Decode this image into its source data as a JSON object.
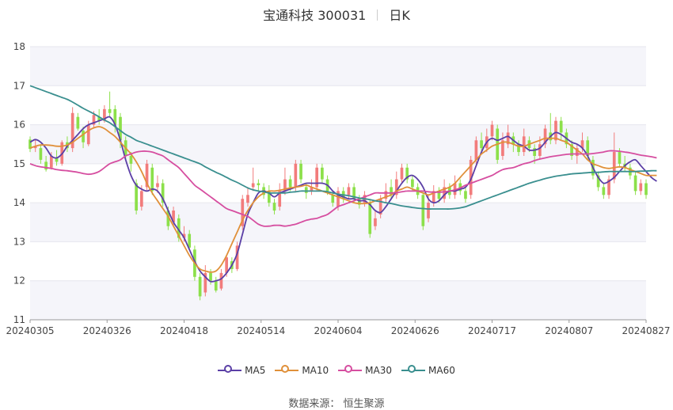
{
  "title": {
    "name": "宝通科技 300031",
    "period": "日K"
  },
  "source": "数据来源： 恒生聚源",
  "chart_data": {
    "type": "candlestick",
    "ylim": [
      11,
      18
    ],
    "yticks": [
      "11",
      "12",
      "13",
      "14",
      "15",
      "16",
      "17",
      "18"
    ],
    "xlim": [
      "20240305",
      "20240827"
    ],
    "xticks": [
      "20240305",
      "20240326",
      "20240418",
      "20240514",
      "20240604",
      "20240626",
      "20240717",
      "20240807",
      "20240827"
    ],
    "legend": [
      {
        "name": "MA5",
        "color": "#5b3fa6"
      },
      {
        "name": "MA10",
        "color": "#e0903a"
      },
      {
        "name": "MA30",
        "color": "#d64ea0"
      },
      {
        "name": "MA60",
        "color": "#3a8f8f"
      }
    ],
    "up_color": "#f27c7c",
    "down_color": "#8ce04a",
    "candles": [
      [
        15.62,
        15.38,
        15.7,
        15.3
      ],
      [
        15.4,
        15.45,
        15.62,
        15.3
      ],
      [
        15.4,
        15.1,
        15.5,
        15.0
      ],
      [
        15.05,
        14.85,
        15.2,
        14.8
      ],
      [
        14.9,
        15.2,
        15.3,
        14.85
      ],
      [
        15.15,
        15.05,
        15.35,
        14.95
      ],
      [
        15.0,
        15.55,
        15.6,
        14.95
      ],
      [
        15.55,
        15.4,
        15.7,
        15.3
      ],
      [
        15.4,
        16.3,
        16.45,
        15.3
      ],
      [
        16.2,
        15.9,
        16.3,
        15.85
      ],
      [
        15.85,
        15.55,
        15.95,
        15.4
      ],
      [
        15.5,
        16.0,
        16.1,
        15.45
      ],
      [
        16.0,
        16.25,
        16.35,
        15.9
      ],
      [
        16.2,
        16.1,
        16.4,
        16.0
      ],
      [
        16.1,
        16.4,
        16.5,
        16.05
      ],
      [
        16.4,
        16.3,
        16.85,
        16.2
      ],
      [
        16.4,
        16.0,
        16.5,
        15.8
      ],
      [
        16.2,
        15.6,
        16.3,
        15.4
      ],
      [
        15.6,
        15.2,
        15.7,
        15.1
      ],
      [
        15.2,
        15.0,
        15.3,
        14.8
      ],
      [
        14.5,
        13.8,
        14.6,
        13.7
      ],
      [
        13.9,
        14.3,
        14.45,
        13.8
      ],
      [
        14.4,
        15.0,
        15.1,
        14.3
      ],
      [
        14.9,
        14.3,
        15.0,
        14.2
      ],
      [
        14.4,
        14.5,
        14.7,
        14.25
      ],
      [
        14.5,
        14.0,
        14.6,
        13.9
      ],
      [
        13.8,
        13.4,
        13.9,
        13.3
      ],
      [
        13.5,
        13.8,
        13.9,
        13.4
      ],
      [
        13.6,
        13.1,
        13.7,
        13.0
      ],
      [
        13.1,
        13.2,
        13.4,
        13.0
      ],
      [
        13.2,
        12.85,
        13.3,
        12.8
      ],
      [
        12.8,
        12.1,
        12.9,
        12.0
      ],
      [
        12.1,
        11.6,
        12.2,
        11.5
      ],
      [
        11.7,
        12.2,
        12.4,
        11.6
      ],
      [
        12.2,
        12.0,
        12.3,
        11.9
      ],
      [
        12.0,
        11.75,
        12.1,
        11.7
      ],
      [
        11.8,
        12.2,
        12.3,
        11.75
      ],
      [
        12.2,
        12.6,
        12.65,
        12.1
      ],
      [
        12.5,
        12.3,
        12.6,
        12.2
      ],
      [
        12.3,
        12.9,
        13.0,
        12.25
      ],
      [
        13.4,
        14.1,
        14.2,
        13.3
      ],
      [
        14.0,
        14.2,
        14.4,
        13.9
      ],
      [
        14.4,
        14.5,
        14.9,
        14.3
      ],
      [
        14.5,
        14.45,
        14.6,
        14.3
      ],
      [
        14.4,
        14.2,
        14.5,
        14.1
      ],
      [
        14.3,
        14.0,
        14.45,
        13.9
      ],
      [
        14.0,
        13.8,
        14.1,
        13.7
      ],
      [
        13.9,
        14.3,
        14.5,
        13.8
      ],
      [
        14.3,
        14.6,
        14.9,
        14.2
      ],
      [
        14.6,
        14.4,
        14.7,
        14.3
      ],
      [
        14.4,
        15.0,
        15.1,
        14.3
      ],
      [
        15.0,
        14.6,
        15.1,
        14.5
      ],
      [
        14.4,
        14.25,
        14.5,
        14.1
      ],
      [
        14.3,
        14.4,
        14.6,
        14.2
      ],
      [
        14.4,
        14.9,
        15.0,
        14.3
      ],
      [
        14.9,
        14.6,
        15.0,
        14.5
      ],
      [
        14.6,
        14.3,
        14.7,
        14.2
      ],
      [
        14.2,
        14.0,
        14.3,
        13.9
      ],
      [
        13.9,
        14.3,
        14.4,
        13.8
      ],
      [
        14.3,
        14.1,
        14.4,
        14.0
      ],
      [
        14.2,
        14.4,
        14.5,
        14.1
      ],
      [
        14.4,
        14.1,
        14.5,
        14.0
      ],
      [
        14.1,
        13.95,
        14.2,
        13.85
      ],
      [
        14.0,
        14.2,
        14.3,
        13.9
      ],
      [
        14.0,
        13.2,
        14.1,
        13.1
      ],
      [
        13.4,
        13.6,
        13.8,
        13.3
      ],
      [
        13.7,
        14.1,
        14.2,
        13.6
      ],
      [
        14.1,
        14.3,
        14.5,
        14.0
      ],
      [
        14.4,
        14.2,
        14.6,
        14.1
      ],
      [
        14.2,
        14.6,
        14.8,
        14.1
      ],
      [
        14.6,
        14.9,
        15.0,
        14.5
      ],
      [
        14.9,
        14.6,
        15.0,
        14.5
      ],
      [
        14.6,
        14.4,
        14.7,
        14.3
      ],
      [
        14.4,
        14.2,
        14.5,
        14.1
      ],
      [
        14.2,
        13.4,
        14.3,
        13.3
      ],
      [
        13.6,
        14.0,
        14.2,
        13.5
      ],
      [
        14.0,
        14.3,
        14.45,
        13.9
      ],
      [
        14.3,
        14.1,
        14.4,
        14.0
      ],
      [
        14.1,
        14.4,
        14.6,
        14.0
      ],
      [
        14.4,
        14.2,
        14.5,
        14.1
      ],
      [
        14.2,
        14.5,
        14.7,
        14.1
      ],
      [
        14.5,
        14.3,
        14.6,
        14.2
      ],
      [
        14.3,
        14.1,
        14.4,
        14.0
      ],
      [
        14.2,
        15.1,
        15.2,
        14.1
      ],
      [
        15.1,
        15.6,
        15.7,
        15.0
      ],
      [
        15.6,
        15.4,
        15.8,
        15.3
      ],
      [
        15.4,
        15.7,
        15.9,
        15.3
      ],
      [
        15.7,
        16.0,
        16.1,
        15.6
      ],
      [
        15.9,
        15.1,
        16.0,
        15.0
      ],
      [
        15.2,
        15.6,
        15.8,
        15.1
      ],
      [
        15.5,
        15.8,
        16.0,
        15.4
      ],
      [
        15.7,
        15.5,
        15.8,
        15.3
      ],
      [
        15.5,
        15.3,
        15.6,
        15.2
      ],
      [
        15.3,
        15.7,
        15.9,
        15.2
      ],
      [
        15.6,
        15.4,
        15.7,
        15.3
      ],
      [
        15.4,
        15.2,
        15.5,
        15.0
      ],
      [
        15.2,
        15.5,
        15.7,
        15.1
      ],
      [
        15.5,
        15.9,
        16.0,
        15.4
      ],
      [
        15.8,
        15.6,
        16.3,
        15.5
      ],
      [
        15.6,
        16.1,
        16.2,
        15.5
      ],
      [
        16.1,
        15.8,
        16.2,
        15.6
      ],
      [
        15.8,
        15.5,
        15.9,
        15.4
      ],
      [
        15.5,
        15.2,
        15.6,
        15.1
      ],
      [
        15.2,
        15.4,
        15.5,
        15.0
      ],
      [
        15.4,
        15.6,
        15.8,
        15.3
      ],
      [
        15.6,
        15.2,
        15.7,
        15.1
      ],
      [
        15.1,
        14.7,
        15.2,
        14.6
      ],
      [
        14.7,
        14.4,
        14.8,
        14.3
      ],
      [
        14.4,
        14.2,
        14.5,
        14.1
      ],
      [
        14.2,
        14.6,
        14.7,
        14.1
      ],
      [
        14.6,
        15.3,
        15.8,
        14.5
      ],
      [
        15.3,
        15.0,
        15.4,
        14.9
      ],
      [
        15.0,
        14.9,
        15.2,
        14.8
      ],
      [
        14.9,
        14.7,
        15.0,
        14.6
      ],
      [
        14.7,
        14.3,
        14.8,
        14.2
      ],
      [
        14.3,
        14.5,
        14.6,
        14.2
      ],
      [
        14.5,
        14.2,
        14.6,
        14.1
      ]
    ],
    "series": [
      {
        "name": "MA5",
        "color": "#5b3fa6",
        "values": [
          15.55,
          15.62,
          15.55,
          15.4,
          15.2,
          15.15,
          15.25,
          15.45,
          15.6,
          15.75,
          15.9,
          16.0,
          16.05,
          16.1,
          16.15,
          16.2,
          16.0,
          15.6,
          15.1,
          14.7,
          14.45,
          14.35,
          14.3,
          14.35,
          14.3,
          14.1,
          13.8,
          13.5,
          13.3,
          13.1,
          12.8,
          12.5,
          12.25,
          12.1,
          11.98,
          12.0,
          12.05,
          12.2,
          12.4,
          12.7,
          13.2,
          13.7,
          14.0,
          14.25,
          14.3,
          14.25,
          14.15,
          14.25,
          14.3,
          14.35,
          14.4,
          14.45,
          14.5,
          14.5,
          14.5,
          14.5,
          14.45,
          14.3,
          14.2,
          14.15,
          14.1,
          14.1,
          14.05,
          14.05,
          13.95,
          13.8,
          13.75,
          13.9,
          14.1,
          14.3,
          14.5,
          14.65,
          14.7,
          14.6,
          14.4,
          14.1,
          14.0,
          14.05,
          14.2,
          14.3,
          14.3,
          14.35,
          14.4,
          14.6,
          14.95,
          15.3,
          15.55,
          15.65,
          15.6,
          15.65,
          15.7,
          15.6,
          15.5,
          15.45,
          15.35,
          15.35,
          15.4,
          15.55,
          15.7,
          15.8,
          15.75,
          15.65,
          15.55,
          15.5,
          15.4,
          15.2,
          14.9,
          14.65,
          14.5,
          14.55,
          14.65,
          14.8,
          14.95,
          15.05,
          15.1,
          14.95,
          14.8,
          14.65,
          14.55
        ]
      },
      {
        "name": "MA10",
        "color": "#e0903a",
        "values": [
          15.4,
          15.45,
          15.48,
          15.48,
          15.47,
          15.45,
          15.45,
          15.48,
          15.55,
          15.65,
          15.75,
          15.85,
          15.92,
          15.95,
          15.9,
          15.8,
          15.7,
          15.55,
          15.4,
          15.25,
          15.05,
          14.8,
          14.5,
          14.25,
          14.05,
          13.85,
          13.65,
          13.4,
          13.15,
          12.9,
          12.65,
          12.45,
          12.3,
          12.25,
          12.22,
          12.25,
          12.4,
          12.65,
          12.95,
          13.25,
          13.55,
          13.8,
          14.0,
          14.15,
          14.25,
          14.3,
          14.3,
          14.32,
          14.35,
          14.38,
          14.4,
          14.42,
          14.45,
          14.4,
          14.35,
          14.3,
          14.25,
          14.2,
          14.15,
          14.1,
          14.05,
          14.0,
          13.98,
          13.98,
          14.0,
          14.05,
          14.1,
          14.15,
          14.2,
          14.3,
          14.35,
          14.4,
          14.35,
          14.3,
          14.25,
          14.2,
          14.25,
          14.3,
          14.35,
          14.4,
          14.5,
          14.65,
          14.8,
          14.95,
          15.1,
          15.25,
          15.35,
          15.45,
          15.5,
          15.55,
          15.55,
          15.5,
          15.45,
          15.45,
          15.5,
          15.55,
          15.6,
          15.65,
          15.65,
          15.65,
          15.6,
          15.55,
          15.45,
          15.35,
          15.25,
          15.1,
          15.0,
          14.95,
          14.9,
          14.88,
          14.9,
          14.92,
          14.9,
          14.85,
          14.8,
          14.75,
          14.7,
          14.7,
          14.7
        ]
      },
      {
        "name": "MA30",
        "color": "#d64ea0",
        "values": [
          15.0,
          14.95,
          14.92,
          14.9,
          14.88,
          14.85,
          14.83,
          14.82,
          14.8,
          14.78,
          14.75,
          14.73,
          14.75,
          14.8,
          14.9,
          15.0,
          15.05,
          15.1,
          15.2,
          15.25,
          15.3,
          15.32,
          15.32,
          15.3,
          15.25,
          15.2,
          15.1,
          15.0,
          14.9,
          14.75,
          14.6,
          14.45,
          14.35,
          14.25,
          14.15,
          14.05,
          13.95,
          13.85,
          13.8,
          13.75,
          13.7,
          13.65,
          13.55,
          13.45,
          13.4,
          13.4,
          13.42,
          13.42,
          13.4,
          13.42,
          13.45,
          13.5,
          13.55,
          13.58,
          13.6,
          13.65,
          13.7,
          13.8,
          13.9,
          13.95,
          14.0,
          14.05,
          14.1,
          14.15,
          14.2,
          14.25,
          14.25,
          14.25,
          14.25,
          14.26,
          14.28,
          14.3,
          14.3,
          14.3,
          14.3,
          14.28,
          14.27,
          14.27,
          14.28,
          14.3,
          14.33,
          14.38,
          14.45,
          14.5,
          14.55,
          14.6,
          14.65,
          14.7,
          14.78,
          14.85,
          14.88,
          14.9,
          14.95,
          15.0,
          15.03,
          15.08,
          15.12,
          15.15,
          15.18,
          15.2,
          15.22,
          15.24,
          15.25,
          15.25,
          15.25,
          15.25,
          15.26,
          15.28,
          15.3,
          15.33,
          15.33,
          15.32,
          15.3,
          15.28,
          15.25,
          15.22,
          15.2,
          15.18,
          15.15
        ]
      },
      {
        "name": "MA60",
        "color": "#3a8f8f",
        "values": [
          17.0,
          16.95,
          16.9,
          16.85,
          16.8,
          16.75,
          16.7,
          16.65,
          16.58,
          16.5,
          16.42,
          16.35,
          16.28,
          16.2,
          16.12,
          16.05,
          15.95,
          15.85,
          15.75,
          15.68,
          15.6,
          15.55,
          15.5,
          15.45,
          15.4,
          15.35,
          15.3,
          15.25,
          15.2,
          15.15,
          15.1,
          15.05,
          15.0,
          14.92,
          14.85,
          14.78,
          14.72,
          14.65,
          14.58,
          14.52,
          14.45,
          14.38,
          14.33,
          14.3,
          14.28,
          14.25,
          14.25,
          14.25,
          14.25,
          14.27,
          14.28,
          14.3,
          14.3,
          14.3,
          14.3,
          14.3,
          14.28,
          14.25,
          14.22,
          14.2,
          14.18,
          14.15,
          14.12,
          14.1,
          14.08,
          14.05,
          14.03,
          14.0,
          13.98,
          13.95,
          13.92,
          13.9,
          13.88,
          13.86,
          13.85,
          13.84,
          13.84,
          13.84,
          13.84,
          13.84,
          13.85,
          13.87,
          13.9,
          13.95,
          14.0,
          14.05,
          14.1,
          14.15,
          14.2,
          14.25,
          14.3,
          14.35,
          14.4,
          14.45,
          14.5,
          14.54,
          14.58,
          14.62,
          14.65,
          14.68,
          14.7,
          14.72,
          14.74,
          14.75,
          14.76,
          14.77,
          14.78,
          14.78,
          14.79,
          14.8,
          14.8,
          14.8,
          14.8,
          14.8,
          14.8,
          14.81,
          14.81,
          14.82,
          14.82
        ]
      }
    ]
  }
}
